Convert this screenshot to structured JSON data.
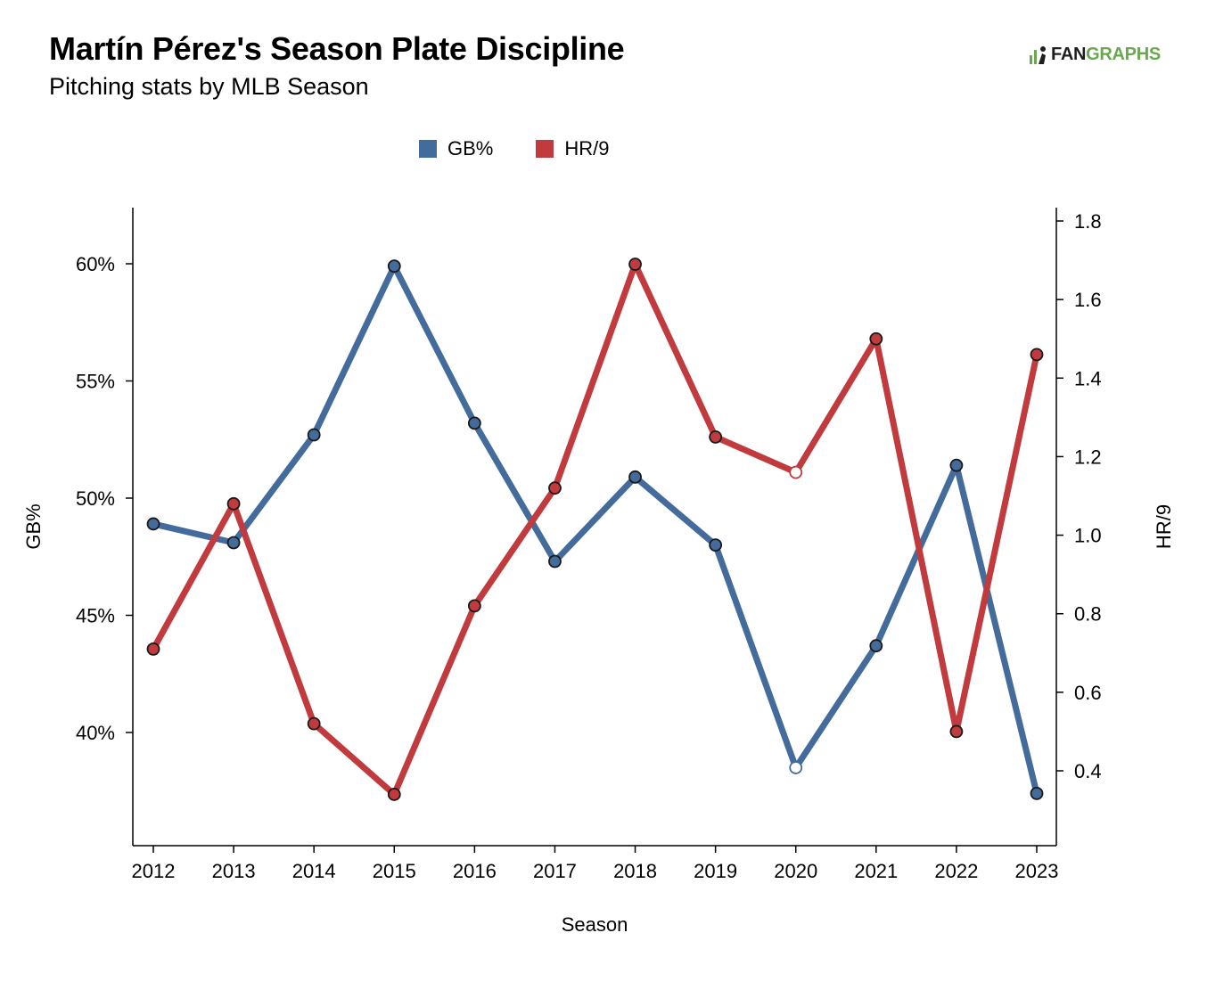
{
  "header": {
    "title": "Martín Pérez's Season Plate Discipline",
    "subtitle": "Pitching stats by MLB Season"
  },
  "logo": {
    "fan": "FAN",
    "graphs": "GRAPHS",
    "brand_color": "#6aa84f"
  },
  "chart_data": {
    "type": "line",
    "xlabel": "Season",
    "ylabel_left": "GB%",
    "ylabel_right": "HR/9",
    "x": [
      2012,
      2013,
      2014,
      2015,
      2016,
      2017,
      2018,
      2019,
      2020,
      2021,
      2022,
      2023
    ],
    "x_tick_labels": [
      "2012",
      "2013",
      "2014",
      "2015",
      "2016",
      "2017",
      "2018",
      "2019",
      "2020",
      "2021",
      "2022",
      "2023"
    ],
    "y_left_ticks": [
      40,
      45,
      50,
      55,
      60
    ],
    "y_left_tick_labels": [
      "40%",
      "45%",
      "50%",
      "55%",
      "60%"
    ],
    "y_right_ticks": [
      0.4,
      0.6,
      0.8,
      1.0,
      1.2,
      1.4,
      1.6,
      1.8
    ],
    "y_right_tick_labels": [
      "0.4",
      "0.6",
      "0.8",
      "1.0",
      "1.2",
      "1.4",
      "1.6",
      "1.8"
    ],
    "legend_position": "top-center",
    "grid": false,
    "series": [
      {
        "name": "GB%",
        "axis": "left",
        "color": "#436b9b",
        "values": [
          48.9,
          48.1,
          52.7,
          59.9,
          53.2,
          47.3,
          50.9,
          48.0,
          38.5,
          43.7,
          51.4,
          37.4
        ],
        "hollow_points": [
          2020
        ]
      },
      {
        "name": "HR/9",
        "axis": "right",
        "color": "#c13a3d",
        "values": [
          0.71,
          1.08,
          0.52,
          0.34,
          0.82,
          1.12,
          1.69,
          1.25,
          1.16,
          1.5,
          0.5,
          1.46
        ],
        "hollow_points": [
          2020
        ]
      }
    ]
  }
}
